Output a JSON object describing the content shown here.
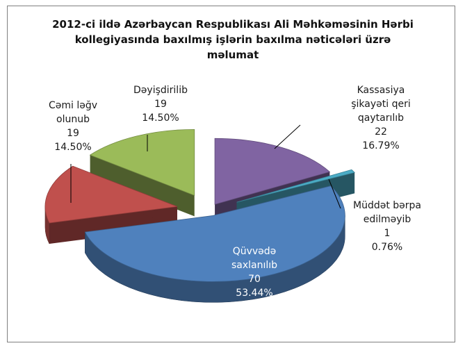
{
  "chart_data": {
    "type": "pie",
    "style": "3d-exploded",
    "title_lines": [
      "2012-ci ildə Azərbaycan Respublikası Ali Məhkəməsinin Hərbi",
      "kollegiyasında  baxılmış işlərin baxılma nəticələri üzrə",
      "məlumat"
    ],
    "slices": [
      {
        "label_lines": [
          "Kassasiya",
          "şikayəti qeri",
          "qaytarılıb"
        ],
        "value": 22,
        "value_text": "22",
        "percent": "16.79%",
        "color": "#8064A2"
      },
      {
        "label_lines": [
          "Müddət  bərpa",
          "edilməyib"
        ],
        "value": 1,
        "value_text": "1",
        "percent": "0.76%",
        "color": "#4BACC6"
      },
      {
        "label_lines": [
          "Qüvvədə",
          "saxlanılıb"
        ],
        "value": 70,
        "value_text": "70",
        "percent": "53.44%",
        "color": "#4F81BD"
      },
      {
        "label_lines": [
          "Cəmi  ləğv",
          "olunub"
        ],
        "value": 19,
        "value_text": "19",
        "percent": "14.50%",
        "color": "#C0504D"
      },
      {
        "label_lines": [
          "Dəyişdirilib"
        ],
        "value": 19,
        "value_text": "19",
        "percent": "14.50%",
        "color": "#9BBB59"
      }
    ],
    "legend": "none"
  }
}
